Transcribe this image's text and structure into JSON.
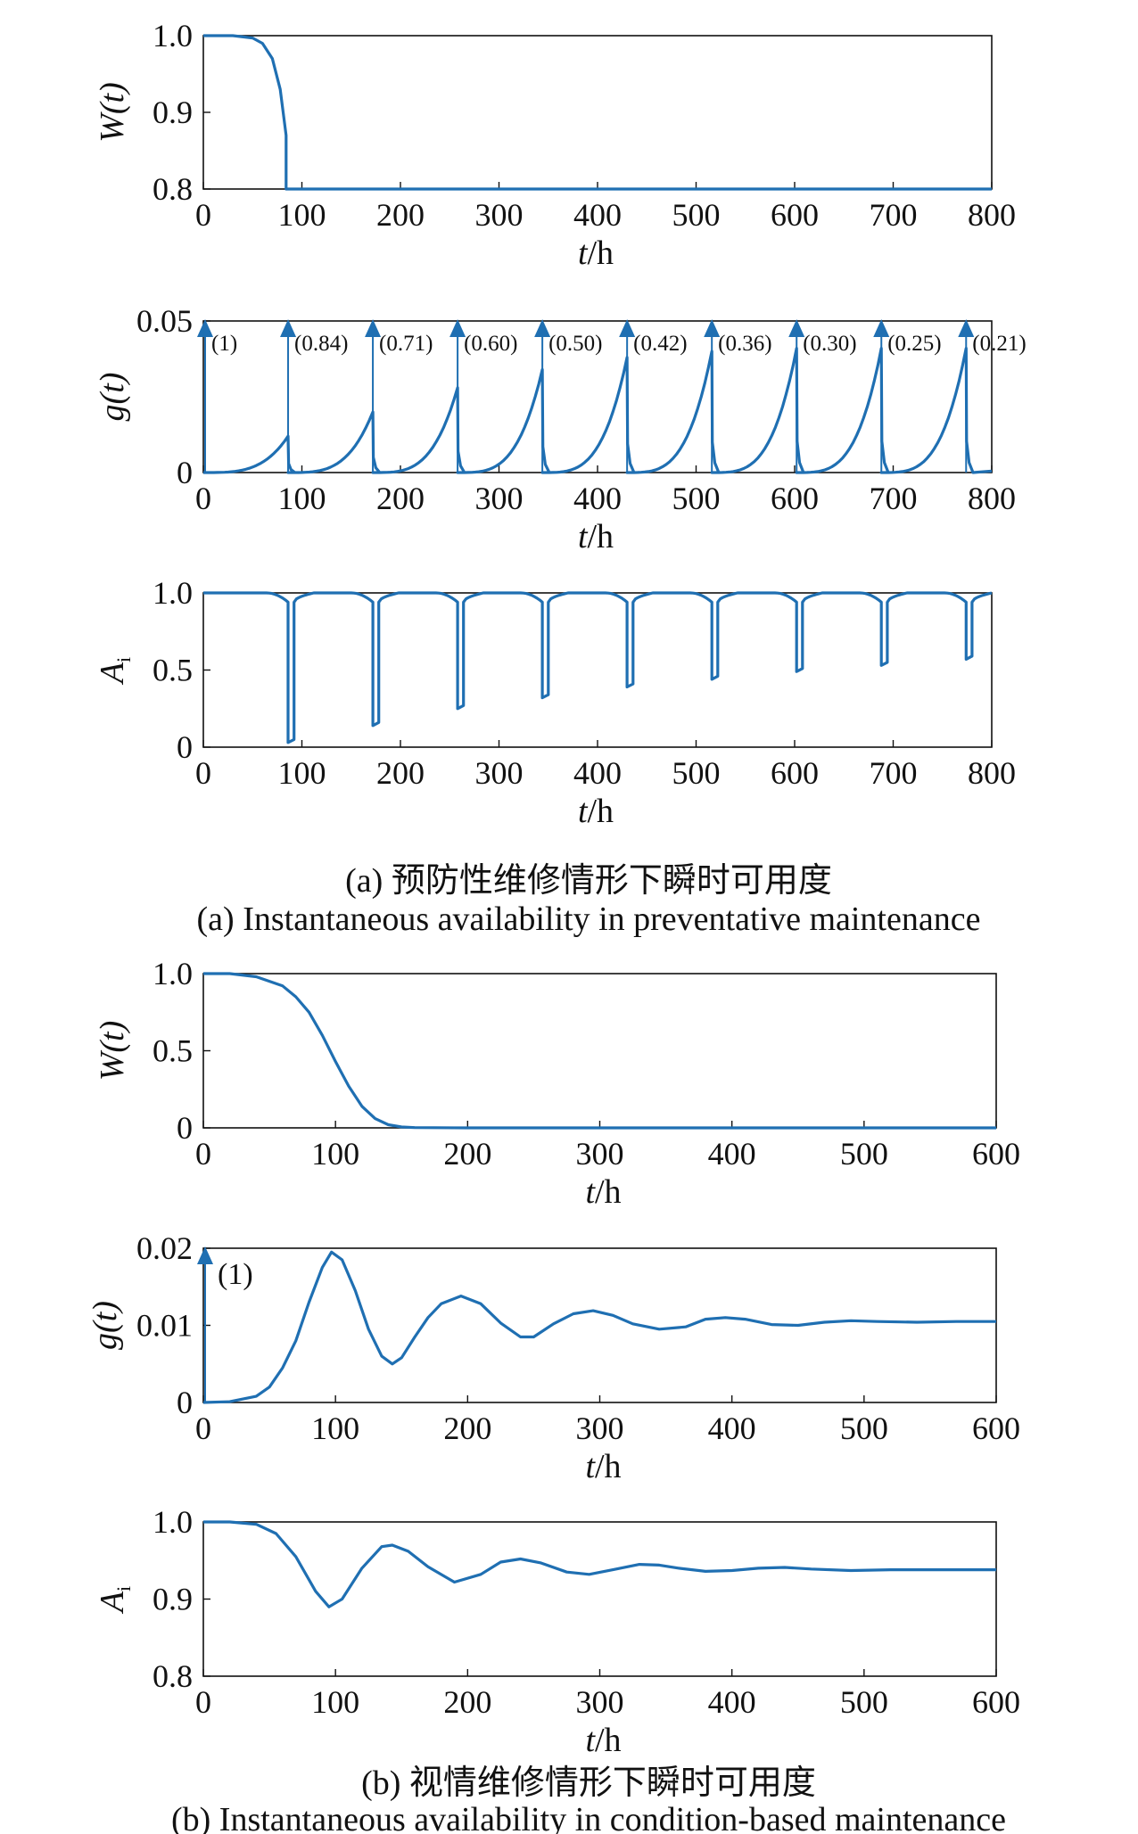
{
  "figure": {
    "caption_a_cn": "(a) 预防性维修情形下瞬时可用度",
    "caption_a_en": "(a) Instantaneous availability in preventative maintenance",
    "caption_b_cn": "(b) 视情维修情形下瞬时可用度",
    "caption_b_en": "(b) Instantaneous availability in condition-based maintenance"
  },
  "colors": {
    "series": "#1f6fb2",
    "axis": "#111111"
  },
  "chart_data": [
    {
      "type": "line",
      "ylabel_main": "W",
      "ylabel_var": "(t)",
      "xlabel_var": "t",
      "xlabel_unit": "/h",
      "xlim": [
        0,
        800
      ],
      "ylim": [
        0.8,
        1.0
      ],
      "xticks": [
        "0",
        "100",
        "200",
        "300",
        "400",
        "500",
        "600",
        "700",
        "800"
      ],
      "yticks": [
        {
          "value": 1.0,
          "label": "1.0"
        },
        {
          "value": 0.9,
          "label": "0.9"
        },
        {
          "value": 0.8,
          "label": "0.8"
        }
      ],
      "series": [
        {
          "x": [
            0,
            30,
            50,
            60,
            70,
            78,
            84,
            84,
            100,
            300,
            500,
            800
          ],
          "y": [
            1.0,
            1.0,
            0.997,
            0.99,
            0.97,
            0.93,
            0.87,
            0.8,
            0.8,
            0.8,
            0.8,
            0.8
          ]
        }
      ]
    },
    {
      "type": "line",
      "ylabel_main": "g",
      "ylabel_var": "(t)",
      "xlabel_var": "t",
      "xlabel_unit": "/h",
      "xlim": [
        0,
        800
      ],
      "ylim": [
        0,
        0.05
      ],
      "xticks": [
        "0",
        "100",
        "200",
        "300",
        "400",
        "500",
        "600",
        "700",
        "800"
      ],
      "yticks": [
        {
          "value": 0.05,
          "label": "0.05"
        },
        {
          "value": 0,
          "label": "0"
        }
      ],
      "impulses": [
        {
          "t": 0,
          "label": "(1)"
        },
        {
          "t": 86,
          "label": "(0.84)"
        },
        {
          "t": 172,
          "label": "(0.71)"
        },
        {
          "t": 258,
          "label": "(0.60)"
        },
        {
          "t": 344,
          "label": "(0.50)"
        },
        {
          "t": 430,
          "label": "(0.42)"
        },
        {
          "t": 516,
          "label": "(0.36)"
        },
        {
          "t": 602,
          "label": "(0.30)"
        },
        {
          "t": 688,
          "label": "(0.25)"
        },
        {
          "t": 774,
          "label": "(0.21)"
        }
      ],
      "peaks": [
        0.012,
        0.02,
        0.028,
        0.034,
        0.038,
        0.04,
        0.041,
        0.041,
        0.041
      ]
    },
    {
      "type": "line",
      "ylabel_main": "A",
      "ylabel_sub": "i",
      "xlabel_var": "t",
      "xlabel_unit": "/h",
      "xlim": [
        0,
        800
      ],
      "ylim": [
        0,
        1.0
      ],
      "xticks": [
        "0",
        "100",
        "200",
        "300",
        "400",
        "500",
        "600",
        "700",
        "800"
      ],
      "yticks": [
        {
          "value": 1.0,
          "label": "1.0"
        },
        {
          "value": 0.5,
          "label": "0.5"
        },
        {
          "value": 0,
          "label": "0"
        }
      ],
      "dips": [
        {
          "t": 86,
          "min": 0.03
        },
        {
          "t": 172,
          "min": 0.14
        },
        {
          "t": 258,
          "min": 0.25
        },
        {
          "t": 344,
          "min": 0.32
        },
        {
          "t": 430,
          "min": 0.39
        },
        {
          "t": 516,
          "min": 0.44
        },
        {
          "t": 602,
          "min": 0.49
        },
        {
          "t": 688,
          "min": 0.53
        },
        {
          "t": 774,
          "min": 0.57
        }
      ]
    },
    {
      "type": "line",
      "ylabel_main": "W",
      "ylabel_var": "(t)",
      "xlabel_var": "t",
      "xlabel_unit": "/h",
      "xlim": [
        0,
        600
      ],
      "ylim": [
        0,
        1.0
      ],
      "xticks": [
        "0",
        "100",
        "200",
        "300",
        "400",
        "500",
        "600"
      ],
      "yticks": [
        {
          "value": 1.0,
          "label": "1.0"
        },
        {
          "value": 0.5,
          "label": "0.5"
        },
        {
          "value": 0,
          "label": "0"
        }
      ],
      "series": [
        {
          "x": [
            0,
            20,
            40,
            60,
            70,
            80,
            90,
            100,
            110,
            120,
            130,
            140,
            150,
            160,
            200,
            300,
            400,
            500,
            600
          ],
          "y": [
            1.0,
            1.0,
            0.98,
            0.92,
            0.85,
            0.75,
            0.6,
            0.43,
            0.27,
            0.14,
            0.06,
            0.02,
            0.006,
            0.002,
            0,
            0,
            0,
            0,
            0
          ]
        }
      ]
    },
    {
      "type": "line",
      "ylabel_main": "g",
      "ylabel_var": "(t)",
      "xlabel_var": "t",
      "xlabel_unit": "/h",
      "xlim": [
        0,
        600
      ],
      "ylim": [
        0,
        0.02
      ],
      "xticks": [
        "0",
        "100",
        "200",
        "300",
        "400",
        "500",
        "600"
      ],
      "yticks": [
        {
          "value": 0.02,
          "label": "0.02"
        },
        {
          "value": 0.01,
          "label": "0.01"
        },
        {
          "value": 0,
          "label": "0"
        }
      ],
      "impulse_label": "(1)",
      "series": [
        {
          "x": [
            0,
            20,
            40,
            50,
            60,
            70,
            80,
            90,
            97,
            105,
            115,
            125,
            135,
            143,
            150,
            160,
            170,
            180,
            195,
            210,
            225,
            240,
            250,
            265,
            280,
            295,
            310,
            325,
            345,
            365,
            380,
            395,
            410,
            430,
            450,
            470,
            490,
            510,
            540,
            570,
            600
          ],
          "y": [
            0,
            0.0001,
            0.0008,
            0.002,
            0.0045,
            0.008,
            0.013,
            0.0175,
            0.0195,
            0.0185,
            0.0145,
            0.0095,
            0.006,
            0.005,
            0.0058,
            0.0085,
            0.011,
            0.0128,
            0.0138,
            0.0128,
            0.0103,
            0.0085,
            0.0085,
            0.0102,
            0.0115,
            0.0119,
            0.0113,
            0.0102,
            0.0095,
            0.0098,
            0.0108,
            0.011,
            0.0108,
            0.0101,
            0.01,
            0.0104,
            0.0106,
            0.0105,
            0.0104,
            0.0105,
            0.0105
          ]
        }
      ]
    },
    {
      "type": "line",
      "ylabel_main": "A",
      "ylabel_sub": "i",
      "xlabel_var": "t",
      "xlabel_unit": "/h",
      "xlim": [
        0,
        600
      ],
      "ylim": [
        0.8,
        1.0
      ],
      "xticks": [
        "0",
        "100",
        "200",
        "300",
        "400",
        "500",
        "600"
      ],
      "yticks": [
        {
          "value": 1.0,
          "label": "1.0"
        },
        {
          "value": 0.9,
          "label": "0.9"
        },
        {
          "value": 0.8,
          "label": "0.8"
        }
      ],
      "series": [
        {
          "x": [
            0,
            20,
            40,
            55,
            70,
            85,
            95,
            105,
            120,
            135,
            143,
            155,
            170,
            190,
            210,
            225,
            240,
            255,
            275,
            292,
            310,
            330,
            345,
            360,
            380,
            400,
            420,
            440,
            460,
            490,
            520,
            560,
            600
          ],
          "y": [
            1.0,
            1.0,
            0.997,
            0.985,
            0.955,
            0.91,
            0.89,
            0.9,
            0.94,
            0.968,
            0.97,
            0.962,
            0.942,
            0.922,
            0.932,
            0.948,
            0.952,
            0.947,
            0.935,
            0.932,
            0.938,
            0.945,
            0.944,
            0.94,
            0.936,
            0.937,
            0.94,
            0.941,
            0.939,
            0.937,
            0.938,
            0.938,
            0.938
          ]
        }
      ]
    }
  ]
}
